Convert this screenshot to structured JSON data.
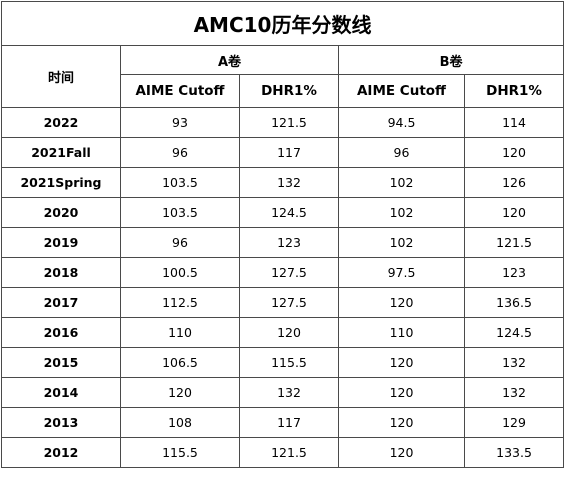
{
  "title": "AMC10历年分数线",
  "header": {
    "time_label": "时间",
    "group_a": "A卷",
    "group_b": "B卷",
    "col_aime": "AIME Cutoff",
    "col_dhr": "DHR1%"
  },
  "rows": [
    {
      "year": "2022",
      "a_aime": "93",
      "a_dhr": "121.5",
      "b_aime": "94.5",
      "b_dhr": "114"
    },
    {
      "year": "2021Fall",
      "a_aime": "96",
      "a_dhr": "117",
      "b_aime": "96",
      "b_dhr": "120"
    },
    {
      "year": "2021Spring",
      "a_aime": "103.5",
      "a_dhr": "132",
      "b_aime": "102",
      "b_dhr": "126"
    },
    {
      "year": "2020",
      "a_aime": "103.5",
      "a_dhr": "124.5",
      "b_aime": "102",
      "b_dhr": "120"
    },
    {
      "year": "2019",
      "a_aime": "96",
      "a_dhr": "123",
      "b_aime": "102",
      "b_dhr": "121.5"
    },
    {
      "year": "2018",
      "a_aime": "100.5",
      "a_dhr": "127.5",
      "b_aime": "97.5",
      "b_dhr": "123"
    },
    {
      "year": "2017",
      "a_aime": "112.5",
      "a_dhr": "127.5",
      "b_aime": "120",
      "b_dhr": "136.5"
    },
    {
      "year": "2016",
      "a_aime": "110",
      "a_dhr": "120",
      "b_aime": "110",
      "b_dhr": "124.5"
    },
    {
      "year": "2015",
      "a_aime": "106.5",
      "a_dhr": "115.5",
      "b_aime": "120",
      "b_dhr": "132"
    },
    {
      "year": "2014",
      "a_aime": "120",
      "a_dhr": "132",
      "b_aime": "120",
      "b_dhr": "132"
    },
    {
      "year": "2013",
      "a_aime": "108",
      "a_dhr": "117",
      "b_aime": "120",
      "b_dhr": "129"
    },
    {
      "year": "2012",
      "a_aime": "115.5",
      "a_dhr": "121.5",
      "b_aime": "120",
      "b_dhr": "133.5"
    }
  ]
}
